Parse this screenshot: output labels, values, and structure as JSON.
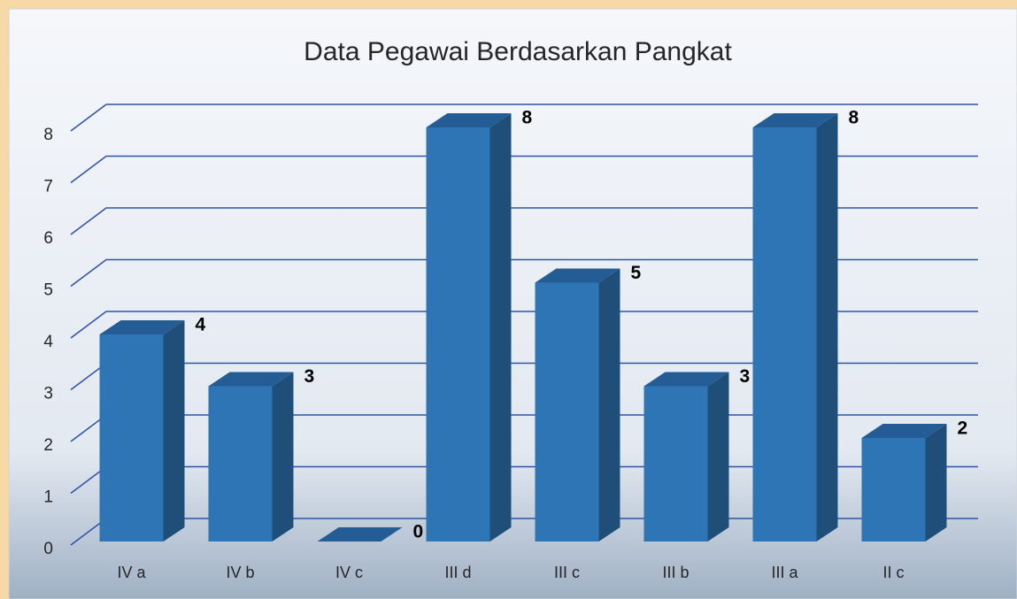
{
  "chart_data": {
    "type": "bar",
    "title": "Data Pegawai Berdasarkan Pangkat",
    "categories": [
      "IV a",
      "IV b",
      "IV c",
      "III d",
      "III c",
      "III b",
      "III a",
      "II c"
    ],
    "values": [
      4,
      3,
      0,
      8,
      5,
      3,
      8,
      2
    ],
    "color": "#2e75b6",
    "ylim": [
      0,
      8
    ],
    "yticks": [
      0,
      1,
      2,
      3,
      4,
      5,
      6,
      7,
      8
    ],
    "grid": true
  }
}
